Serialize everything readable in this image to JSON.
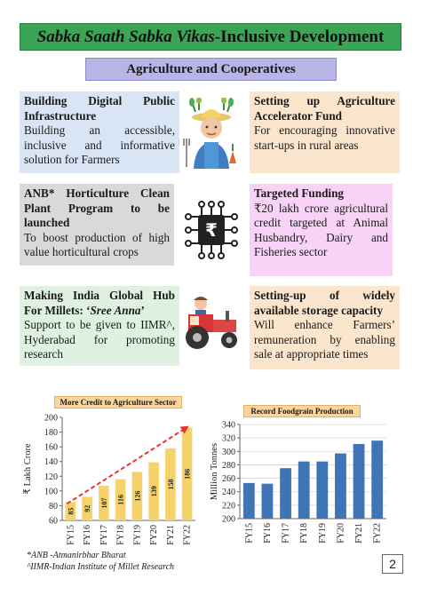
{
  "header": {
    "title_italic": "Sabka Saath Sabka Vikas",
    "title_rest": "-Inclusive Development",
    "section": "Agriculture and Cooperatives"
  },
  "boxes": {
    "dpi": {
      "title": "Building Digital Public Infrastructure",
      "body": "Building an accessible, inclusive and informative solution for Farmers"
    },
    "accelerator": {
      "title": "Setting up Agriculture Accelerator Fund",
      "body": "For encouraging innovative start-ups in rural areas"
    },
    "horticulture": {
      "title": "ANB* Horticulture Clean Plant Program to be launched",
      "body": "To boost production of high value horticultural crops"
    },
    "funding": {
      "title": "Targeted Funding",
      "body": "₹20 lakh crore agricultural credit targeted at Animal Husbandry, Dairy and Fisheries sector"
    },
    "millets": {
      "title_prefix": "Making India Global Hub For Millets: ‘",
      "title_italic": "Sree Anna",
      "title_suffix": "’",
      "body": "Support to be given to IIMR^, Hyderabad for promoting research"
    },
    "storage": {
      "title": "Setting-up of widely available storage capacity",
      "body": "Will enhance Farmers’ remuneration by enabling sale at appropriate times"
    }
  },
  "icons": {
    "farmer": "farmer-icon",
    "chip": "rupee-chip-icon",
    "tractor": "tractor-icon"
  },
  "chart_data": [
    {
      "type": "bar",
      "title": "More Credit to Agriculture Sector",
      "categories": [
        "FY15",
        "FY16",
        "FY17",
        "FY18",
        "FY19",
        "FY20",
        "FY21",
        "FY22"
      ],
      "values": [
        85,
        92,
        107,
        116,
        126,
        139,
        158,
        186
      ],
      "data_labels": [
        "85",
        "92",
        "107",
        "116",
        "126",
        "139",
        "158",
        "186"
      ],
      "ylabel": "₹ Lakh Crore",
      "ylim": [
        60,
        200
      ],
      "yticks": [
        60,
        80,
        100,
        120,
        140,
        160,
        180,
        200
      ],
      "bar_color": "#f5d36a",
      "trend_arrow": true,
      "trend_color": "#e8342a",
      "grid": false
    },
    {
      "type": "bar",
      "title": "Record Foodgrain Production",
      "categories": [
        "FY15",
        "FY16",
        "FY17",
        "FY18",
        "FY19",
        "FY20",
        "FY21",
        "FY22"
      ],
      "values": [
        253,
        252,
        275,
        285,
        285,
        297,
        311,
        316
      ],
      "ylabel": "Million Tonnes",
      "ylim": [
        200,
        340
      ],
      "yticks": [
        200,
        220,
        240,
        260,
        280,
        300,
        320,
        340
      ],
      "bar_color": "#3f74b5",
      "grid": true
    }
  ],
  "footnotes": {
    "anb": "*ANB -Atmanirbhar Bharat",
    "iimr": "^IIMR-Indian Institute of Millet Research"
  },
  "page_number": "2"
}
